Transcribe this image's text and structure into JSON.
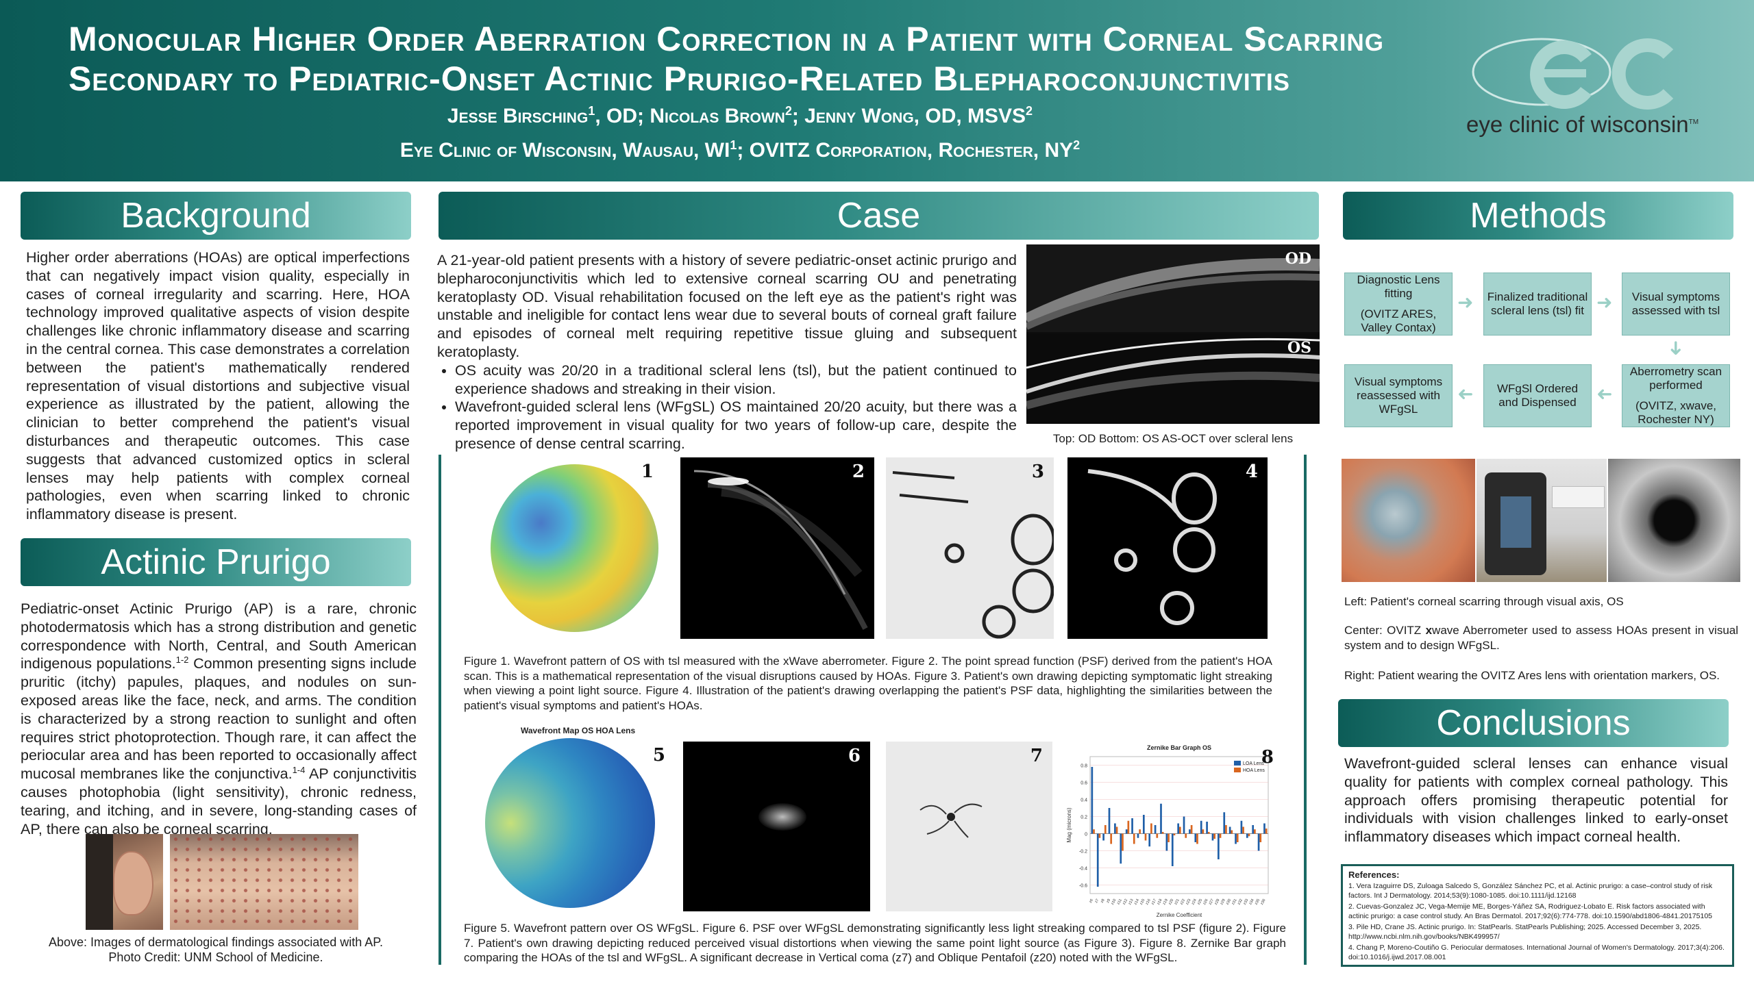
{
  "header": {
    "title_line1": "Monocular Higher Order Aberration Correction in a Patient with Corneal Scarring",
    "title_line2": "Secondary to Pediatric-Onset Actinic Prurigo-Related Blepharoconjunctivitis",
    "authors": [
      {
        "name": "Jesse Birsching",
        "sup": "1",
        "suffix": ", OD; "
      },
      {
        "name": "Nicolas Brown",
        "sup": "2",
        "suffix": "; "
      },
      {
        "name": "Jenny Wong, OD, MSVS",
        "sup": "2",
        "suffix": ""
      }
    ],
    "affiliations": [
      {
        "name": "Eye Clinic of Wisconsin, Wausau, WI",
        "sup": "1",
        "suffix": "; "
      },
      {
        "name": "OVITZ Corporation, Rochester, NY",
        "sup": "2",
        "suffix": ""
      }
    ],
    "logo_text": "eye clinic of wisconsin",
    "logo_tm": "TM"
  },
  "colors": {
    "teal_dark": "#0b5a56",
    "teal_light": "#84c2bd",
    "flow_box": "#a5d3ce"
  },
  "background": {
    "heading": "Background",
    "text": "Higher order aberrations (HOAs) are optical imperfections that can negatively impact vision quality, especially in cases of corneal irregularity and scarring. Here, HOA technology improved qualitative aspects of vision despite challenges like chronic inflammatory disease and scarring in the central cornea. This case demonstrates a correlation between the patient's mathematically rendered representation of visual distortions and subjective visual experience as illustrated by the patient, allowing the clinician to better comprehend the patient's visual disturbances and therapeutic outcomes. This case suggests that advanced customized optics in scleral lenses may help patients with complex corneal pathologies, even when scarring linked to chronic inflammatory disease is present."
  },
  "actinic": {
    "heading": "Actinic Prurigo",
    "text_a": "Pediatric-onset Actinic Prurigo (AP) is a rare, chronic photodermatosis which has a strong distribution and genetic correspondence with North, Central, and South American indigenous populations.",
    "sup_a": "1-2",
    "text_b": " Common presenting signs include pruritic (itchy) papules, plaques, and nodules on sun-exposed areas like the face, neck, and arms. The condition is characterized by a strong reaction to sunlight and often requires strict photoprotection. Though rare, it can affect the periocular area and has been reported to occasionally affect mucosal membranes like the conjunctiva.",
    "sup_b": "1-4",
    "text_c": " AP conjunctivitis causes photophobia (light sensitivity), chronic redness, tearing, and itching, and in severe, long-standing cases of AP, there can also be corneal scarring.",
    "caption_line1": "Above: Images of dermatological findings associated with AP.",
    "caption_line2": "Photo Credit: UNM School of Medicine."
  },
  "case": {
    "heading": "Case",
    "intro": "A 21-year-old patient presents with a history of severe pediatric-onset actinic prurigo and blepharoconjunctivitis which led to extensive corneal scarring OU and penetrating keratoplasty OD. Visual rehabilitation focused on the left eye as the patient's right was unstable and ineligible for contact lens wear due to several bouts of corneal graft failure and episodes of corneal melt requiring repetitive tissue gluing and subsequent keratoplasty.",
    "bullets": [
      "OS acuity was 20/20 in a traditional scleral lens (tsl), but the patient continued to experience shadows and streaking in their vision.",
      "Wavefront-guided scleral lens (WFgSL) OS maintained 20/20 acuity, but there was a reported improvement in visual quality for two years of follow-up care, despite the presence of dense central scarring."
    ],
    "oct_label_od": "OD",
    "oct_label_os": "OS",
    "oct_caption": "Top: OD Bottom: OS AS-OCT over scleral lens",
    "figure_numbers": [
      "1",
      "2",
      "3",
      "4",
      "5",
      "6",
      "7",
      "8"
    ],
    "caption_row1": "Figure 1. Wavefront pattern of OS with tsl measured with the xWave aberrometer. Figure 2. The point spread function (PSF) derived from the patient's HOA scan. This is a mathematical representation of the visual disruptions caused by HOAs. Figure 3. Patient's own drawing depicting symptomatic light streaking when viewing a point light source. Figure 4. Illustration of the patient's drawing overlapping the patient's PSF data, highlighting the similarities between the patient's visual symptoms and patient's HOAs.",
    "caption_row2": "Figure 5. Wavefront pattern over OS WFgSL. Figure 6. PSF over WFgSL demonstrating significantly less light streaking compared to tsl PSF (figure 2). Figure 7. Patient's own drawing depicting reduced perceived visual distortions when viewing the same point light source (as Figure 3). Figure 8. Zernike Bar graph comparing the HOAs of the tsl and WFgSL. A significant decrease in Vertical coma (z7) and Oblique Pentafoil (z20) noted with the WFgSL.",
    "fig5_title": "Wavefront Map OS HOA Lens"
  },
  "chart_data": {
    "type": "bar",
    "title": "Zernike Bar Graph OS",
    "xlabel": "Zernike Coefficient",
    "ylabel": "Mag (microns)",
    "ylim": [
      -0.7,
      0.9
    ],
    "yticks": [
      "0.8",
      "0.6",
      "0.4",
      "0.2",
      "0",
      "-0.2",
      "-0.4",
      "-0.6"
    ],
    "legend_position": "top-right",
    "categories": [
      "z6",
      "z7",
      "z8",
      "z9",
      "z10",
      "z11",
      "z12",
      "z13",
      "z14",
      "z15",
      "z16",
      "z17",
      "z18",
      "z19",
      "z20",
      "z21",
      "z22",
      "z23",
      "z24",
      "z25",
      "z26",
      "z27",
      "z28",
      "z29",
      "z30",
      "z31",
      "z32",
      "z33",
      "z34",
      "z35",
      "z36"
    ],
    "series": [
      {
        "name": "LOA Lens",
        "color": "#1f5fa8",
        "values": [
          0.78,
          -0.62,
          -0.08,
          0.3,
          0.12,
          -0.35,
          0.05,
          0.18,
          -0.05,
          0.22,
          -0.15,
          0.1,
          0.35,
          -0.2,
          -0.38,
          0.12,
          0.2,
          0.05,
          -0.1,
          0.15,
          0.14,
          -0.08,
          -0.3,
          0.25,
          0.08,
          -0.12,
          0.15,
          -0.05,
          0.1,
          -0.2,
          0.12
        ]
      },
      {
        "name": "HOA Lens",
        "color": "#d9661f",
        "values": [
          0.05,
          -0.05,
          0.1,
          -0.12,
          0.08,
          -0.2,
          0.15,
          -0.12,
          0.05,
          -0.08,
          0.12,
          -0.05,
          0.02,
          -0.1,
          -0.02,
          0.08,
          -0.05,
          0.1,
          -0.12,
          0.05,
          0.02,
          -0.06,
          -0.05,
          0.1,
          0.04,
          -0.1,
          0.08,
          -0.03,
          0.05,
          -0.1,
          0.06
        ]
      }
    ]
  },
  "methods": {
    "heading": "Methods",
    "flow": [
      {
        "line1": "Diagnostic Lens fitting",
        "line2": "(OVITZ ARES, Valley Contax)"
      },
      {
        "line1": "Finalized traditional scleral lens (tsl) fit",
        "line2": ""
      },
      {
        "line1": "Visual symptoms assessed with tsl",
        "line2": ""
      },
      {
        "line1": "Aberrometry scan performed",
        "line2": "(OVITZ, xwave, Rochester NY)"
      },
      {
        "line1": "WFgSl Ordered and Dispensed",
        "line2": ""
      },
      {
        "line1": "Visual symptoms reassessed with WFgSL",
        "line2": ""
      }
    ],
    "caption_left": "Left: Patient's corneal scarring through visual axis, OS",
    "caption_center_a": "Center: OVITZ ",
    "caption_center_bold": "x",
    "caption_center_b": "wave Aberrometer used to assess HOAs present in visual system and to design WFgSL.",
    "caption_right": "Right: Patient wearing the OVITZ Ares lens with orientation markers, OS."
  },
  "conclusions": {
    "heading": "Conclusions",
    "text": "Wavefront-guided scleral lenses can enhance visual quality for patients with complex corneal pathology. This approach offers promising therapeutic potential for individuals with vision challenges linked to early-onset inflammatory diseases which impact corneal health."
  },
  "references": {
    "heading": "References:",
    "items": [
      "1. Vera Izaguirre DS, Zuloaga Salcedo S, González Sánchez PC, et al. Actinic prurigo: a case–control study of risk factors. Int J Dermatology. 2014;53(9):1080-1085. doi:10.1111/ijd.12168",
      "2. Cuevas-Gonzalez JC, Vega-Memije ME, Borges-Yáñez SA, Rodriguez-Lobato E. Risk factors associated with actinic prurigo: a case control study. An Bras Dermatol. 2017;92(6):774-778. doi:10.1590/abd1806-4841.20175105",
      "3. Pile HD, Crane JS. Actinic prurigo. In: StatPearls. StatPearls Publishing; 2025. Accessed December 3, 2025. http://www.ncbi.nlm.nih.gov/books/NBK499957/",
      "4. Chang P, Moreno-Coutiño G. Periocular dermatoses. International Journal of Women's Dermatology. 2017;3(4):206. doi:10.1016/j.ijwd.2017.08.001"
    ]
  }
}
